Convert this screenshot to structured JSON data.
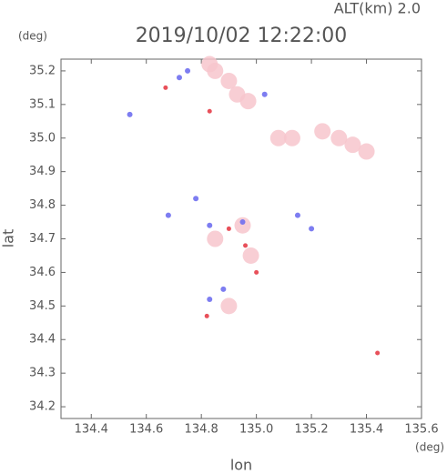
{
  "chart_data": {
    "type": "scatter",
    "title": "2019/10/02 12:22:00",
    "subtitle": "ALT(km) 2.0",
    "x_label": "lon",
    "y_label": "lat",
    "x_unit": "(deg)",
    "y_unit": "(deg)",
    "xlim": [
      134.29,
      135.6
    ],
    "ylim": [
      34.165,
      35.235
    ],
    "xticks": [
      134.4,
      134.6,
      134.8,
      {
        "value": 135.0,
        "label": "135.0"
      },
      135.2,
      135.4,
      135.6
    ],
    "yticks": [
      34.2,
      34.3,
      34.4,
      34.5,
      34.6,
      34.7,
      34.8,
      34.9,
      {
        "value": 35.0,
        "label": "35.0"
      },
      35.1,
      35.2
    ],
    "series": [
      {
        "color": "#f7c6cc",
        "x": [
          134.85,
          134.9,
          134.93,
          134.97,
          134.83,
          135.08,
          135.13,
          135.24,
          135.3,
          135.35,
          135.4,
          134.95,
          134.98,
          134.9,
          134.85
        ],
        "y": [
          35.2,
          35.17,
          35.13,
          35.11,
          35.22,
          35.0,
          35.0,
          35.02,
          35.0,
          34.98,
          34.96,
          34.74,
          34.65,
          34.5,
          34.7
        ]
      },
      {
        "color": "#6f6ff0",
        "x": [
          134.54,
          134.72,
          134.75,
          134.68,
          134.78,
          134.83,
          134.88,
          134.83,
          135.15,
          135.2,
          134.95,
          135.03
        ],
        "y": [
          35.07,
          35.18,
          35.2,
          34.77,
          34.82,
          34.74,
          34.55,
          34.52,
          34.77,
          34.73,
          34.75,
          35.13
        ]
      },
      {
        "color": "#e8505a",
        "x": [
          134.67,
          134.83,
          134.82,
          135.44,
          134.96,
          135.0,
          134.9
        ],
        "y": [
          35.15,
          35.08,
          34.47,
          34.36,
          34.68,
          34.6,
          34.73
        ]
      }
    ]
  }
}
